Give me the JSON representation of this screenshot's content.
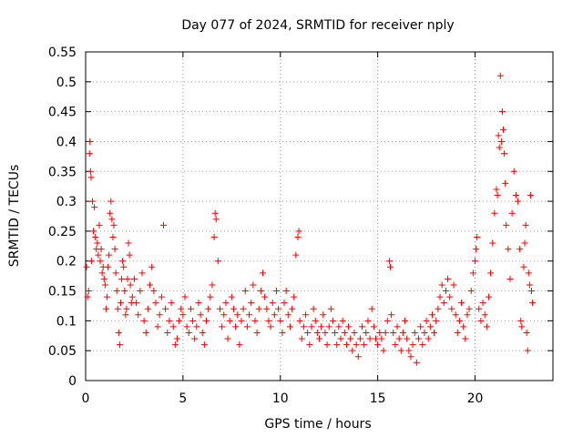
{
  "chart_data": {
    "type": "scatter",
    "title": "Day 077 of 2024, SRMTID for receiver nply",
    "xlabel": "GPS time / hours",
    "ylabel": "SRMTID / TECUs",
    "xlim": [
      0,
      24
    ],
    "ylim": [
      0,
      0.55
    ],
    "xticks": [
      0,
      5,
      10,
      15,
      20
    ],
    "xtick_labels": [
      "0",
      "5",
      "10",
      "15",
      "20"
    ],
    "yticks": [
      0,
      0.05,
      0.1,
      0.15,
      0.2,
      0.25,
      0.3,
      0.35,
      0.4,
      0.45,
      0.5,
      0.55
    ],
    "ytick_labels": [
      "0",
      "0.05",
      "0.1",
      "0.15",
      "0.2",
      "0.25",
      "0.3",
      "0.35",
      "0.4",
      "0.45",
      "0.5",
      "0.55"
    ],
    "grid": true,
    "marker": "+",
    "color": "#ff0000",
    "series": [
      {
        "name": "SRMTID",
        "points": [
          [
            0.05,
            0.19
          ],
          [
            0.1,
            0.14
          ],
          [
            0.15,
            0.15
          ],
          [
            0.2,
            0.38
          ],
          [
            0.22,
            0.4
          ],
          [
            0.25,
            0.35
          ],
          [
            0.28,
            0.34
          ],
          [
            0.3,
            0.2
          ],
          [
            0.35,
            0.3
          ],
          [
            0.4,
            0.25
          ],
          [
            0.45,
            0.29
          ],
          [
            0.5,
            0.24
          ],
          [
            0.55,
            0.22
          ],
          [
            0.6,
            0.23
          ],
          [
            0.65,
            0.21
          ],
          [
            0.7,
            0.26
          ],
          [
            0.75,
            0.2
          ],
          [
            0.8,
            0.22
          ],
          [
            0.85,
            0.18
          ],
          [
            0.9,
            0.19
          ],
          [
            0.95,
            0.17
          ],
          [
            1.0,
            0.16
          ],
          [
            1.05,
            0.12
          ],
          [
            1.1,
            0.14
          ],
          [
            1.15,
            0.19
          ],
          [
            1.2,
            0.21
          ],
          [
            1.25,
            0.28
          ],
          [
            1.3,
            0.3
          ],
          [
            1.35,
            0.27
          ],
          [
            1.4,
            0.24
          ],
          [
            1.45,
            0.26
          ],
          [
            1.5,
            0.22
          ],
          [
            1.55,
            0.18
          ],
          [
            1.6,
            0.15
          ],
          [
            1.65,
            0.12
          ],
          [
            1.7,
            0.08
          ],
          [
            1.75,
            0.06
          ],
          [
            1.8,
            0.13
          ],
          [
            1.85,
            0.17
          ],
          [
            1.9,
            0.2
          ],
          [
            1.95,
            0.19
          ],
          [
            2.0,
            0.15
          ],
          [
            2.05,
            0.11
          ],
          [
            2.1,
            0.12
          ],
          [
            2.15,
            0.17
          ],
          [
            2.2,
            0.23
          ],
          [
            2.25,
            0.21
          ],
          [
            2.3,
            0.16
          ],
          [
            2.35,
            0.13
          ],
          [
            2.4,
            0.14
          ],
          [
            2.5,
            0.17
          ],
          [
            2.6,
            0.13
          ],
          [
            2.7,
            0.11
          ],
          [
            2.8,
            0.15
          ],
          [
            2.9,
            0.18
          ],
          [
            3.0,
            0.1
          ],
          [
            3.1,
            0.08
          ],
          [
            3.2,
            0.12
          ],
          [
            3.3,
            0.16
          ],
          [
            3.4,
            0.19
          ],
          [
            3.5,
            0.15
          ],
          [
            3.6,
            0.13
          ],
          [
            3.7,
            0.09
          ],
          [
            3.8,
            0.11
          ],
          [
            3.9,
            0.14
          ],
          [
            4.0,
            0.26
          ],
          [
            4.1,
            0.12
          ],
          [
            4.2,
            0.08
          ],
          [
            4.3,
            0.1
          ],
          [
            4.4,
            0.13
          ],
          [
            4.5,
            0.09
          ],
          [
            4.6,
            0.06
          ],
          [
            4.7,
            0.07
          ],
          [
            4.8,
            0.1
          ],
          [
            4.9,
            0.12
          ],
          [
            5.0,
            0.11
          ],
          [
            5.1,
            0.14
          ],
          [
            5.2,
            0.09
          ],
          [
            5.3,
            0.08
          ],
          [
            5.4,
            0.12
          ],
          [
            5.5,
            0.1
          ],
          [
            5.6,
            0.07
          ],
          [
            5.7,
            0.09
          ],
          [
            5.8,
            0.13
          ],
          [
            5.9,
            0.11
          ],
          [
            6.0,
            0.08
          ],
          [
            6.1,
            0.06
          ],
          [
            6.2,
            0.1
          ],
          [
            6.3,
            0.12
          ],
          [
            6.4,
            0.14
          ],
          [
            6.5,
            0.16
          ],
          [
            6.6,
            0.24
          ],
          [
            6.65,
            0.28
          ],
          [
            6.7,
            0.27
          ],
          [
            6.8,
            0.2
          ],
          [
            6.9,
            0.12
          ],
          [
            7.0,
            0.09
          ],
          [
            7.1,
            0.11
          ],
          [
            7.2,
            0.13
          ],
          [
            7.3,
            0.07
          ],
          [
            7.4,
            0.1
          ],
          [
            7.5,
            0.14
          ],
          [
            7.6,
            0.12
          ],
          [
            7.7,
            0.09
          ],
          [
            7.8,
            0.11
          ],
          [
            7.9,
            0.06
          ],
          [
            8.0,
            0.1
          ],
          [
            8.1,
            0.12
          ],
          [
            8.2,
            0.15
          ],
          [
            8.3,
            0.09
          ],
          [
            8.4,
            0.11
          ],
          [
            8.5,
            0.13
          ],
          [
            8.6,
            0.16
          ],
          [
            8.7,
            0.1
          ],
          [
            8.8,
            0.08
          ],
          [
            8.9,
            0.12
          ],
          [
            9.0,
            0.15
          ],
          [
            9.1,
            0.18
          ],
          [
            9.2,
            0.14
          ],
          [
            9.3,
            0.12
          ],
          [
            9.4,
            0.1
          ],
          [
            9.5,
            0.09
          ],
          [
            9.6,
            0.13
          ],
          [
            9.7,
            0.11
          ],
          [
            9.8,
            0.15
          ],
          [
            9.9,
            0.12
          ],
          [
            10.0,
            0.1
          ],
          [
            10.1,
            0.08
          ],
          [
            10.2,
            0.13
          ],
          [
            10.3,
            0.15
          ],
          [
            10.4,
            0.11
          ],
          [
            10.5,
            0.09
          ],
          [
            10.6,
            0.12
          ],
          [
            10.7,
            0.14
          ],
          [
            10.8,
            0.21
          ],
          [
            10.9,
            0.24
          ],
          [
            10.95,
            0.25
          ],
          [
            11.0,
            0.1
          ],
          [
            11.1,
            0.07
          ],
          [
            11.2,
            0.09
          ],
          [
            11.3,
            0.11
          ],
          [
            11.4,
            0.08
          ],
          [
            11.5,
            0.06
          ],
          [
            11.6,
            0.09
          ],
          [
            11.7,
            0.12
          ],
          [
            11.8,
            0.1
          ],
          [
            11.9,
            0.08
          ],
          [
            12.0,
            0.07
          ],
          [
            12.1,
            0.09
          ],
          [
            12.2,
            0.11
          ],
          [
            12.3,
            0.08
          ],
          [
            12.4,
            0.06
          ],
          [
            12.5,
            0.09
          ],
          [
            12.6,
            0.12
          ],
          [
            12.7,
            0.1
          ],
          [
            12.8,
            0.08
          ],
          [
            12.9,
            0.06
          ],
          [
            13.0,
            0.09
          ],
          [
            13.1,
            0.07
          ],
          [
            13.2,
            0.1
          ],
          [
            13.3,
            0.08
          ],
          [
            13.4,
            0.06
          ],
          [
            13.5,
            0.09
          ],
          [
            13.6,
            0.07
          ],
          [
            13.7,
            0.05
          ],
          [
            13.8,
            0.08
          ],
          [
            13.9,
            0.06
          ],
          [
            14.0,
            0.04
          ],
          [
            14.1,
            0.07
          ],
          [
            14.2,
            0.09
          ],
          [
            14.3,
            0.06
          ],
          [
            14.4,
            0.08
          ],
          [
            14.5,
            0.1
          ],
          [
            14.6,
            0.07
          ],
          [
            14.7,
            0.12
          ],
          [
            14.8,
            0.09
          ],
          [
            14.9,
            0.07
          ],
          [
            15.0,
            0.06
          ],
          [
            15.1,
            0.08
          ],
          [
            15.2,
            0.07
          ],
          [
            15.3,
            0.05
          ],
          [
            15.4,
            0.08
          ],
          [
            15.5,
            0.1
          ],
          [
            15.6,
            0.2
          ],
          [
            15.65,
            0.19
          ],
          [
            15.7,
            0.11
          ],
          [
            15.8,
            0.08
          ],
          [
            15.9,
            0.06
          ],
          [
            16.0,
            0.09
          ],
          [
            16.1,
            0.07
          ],
          [
            16.2,
            0.05
          ],
          [
            16.3,
            0.08
          ],
          [
            16.4,
            0.1
          ],
          [
            16.5,
            0.07
          ],
          [
            16.6,
            0.05
          ],
          [
            16.7,
            0.04
          ],
          [
            16.8,
            0.06
          ],
          [
            16.9,
            0.08
          ],
          [
            17.0,
            0.03
          ],
          [
            17.1,
            0.07
          ],
          [
            17.2,
            0.09
          ],
          [
            17.3,
            0.06
          ],
          [
            17.4,
            0.08
          ],
          [
            17.5,
            0.1
          ],
          [
            17.6,
            0.07
          ],
          [
            17.7,
            0.09
          ],
          [
            17.8,
            0.11
          ],
          [
            17.9,
            0.08
          ],
          [
            18.0,
            0.1
          ],
          [
            18.1,
            0.12
          ],
          [
            18.2,
            0.14
          ],
          [
            18.3,
            0.16
          ],
          [
            18.4,
            0.13
          ],
          [
            18.5,
            0.15
          ],
          [
            18.6,
            0.17
          ],
          [
            18.7,
            0.14
          ],
          [
            18.8,
            0.12
          ],
          [
            18.9,
            0.16
          ],
          [
            19.0,
            0.11
          ],
          [
            19.1,
            0.08
          ],
          [
            19.2,
            0.1
          ],
          [
            19.3,
            0.13
          ],
          [
            19.4,
            0.09
          ],
          [
            19.5,
            0.07
          ],
          [
            19.6,
            0.11
          ],
          [
            19.7,
            0.12
          ],
          [
            19.8,
            0.15
          ],
          [
            19.9,
            0.18
          ],
          [
            20.0,
            0.2
          ],
          [
            20.05,
            0.22
          ],
          [
            20.1,
            0.24
          ],
          [
            20.2,
            0.12
          ],
          [
            20.3,
            0.1
          ],
          [
            20.4,
            0.13
          ],
          [
            20.5,
            0.11
          ],
          [
            20.6,
            0.09
          ],
          [
            20.7,
            0.14
          ],
          [
            20.8,
            0.18
          ],
          [
            20.9,
            0.23
          ],
          [
            21.0,
            0.28
          ],
          [
            21.1,
            0.32
          ],
          [
            21.15,
            0.31
          ],
          [
            21.2,
            0.41
          ],
          [
            21.25,
            0.39
          ],
          [
            21.3,
            0.51
          ],
          [
            21.35,
            0.4
          ],
          [
            21.4,
            0.45
          ],
          [
            21.45,
            0.42
          ],
          [
            21.5,
            0.38
          ],
          [
            21.55,
            0.33
          ],
          [
            21.6,
            0.26
          ],
          [
            21.7,
            0.22
          ],
          [
            21.8,
            0.17
          ],
          [
            21.9,
            0.28
          ],
          [
            22.0,
            0.35
          ],
          [
            22.1,
            0.31
          ],
          [
            22.2,
            0.3
          ],
          [
            22.3,
            0.22
          ],
          [
            22.35,
            0.1
          ],
          [
            22.4,
            0.09
          ],
          [
            22.5,
            0.19
          ],
          [
            22.55,
            0.23
          ],
          [
            22.6,
            0.26
          ],
          [
            22.65,
            0.08
          ],
          [
            22.7,
            0.05
          ],
          [
            22.75,
            0.18
          ],
          [
            22.8,
            0.16
          ],
          [
            22.85,
            0.31
          ],
          [
            22.9,
            0.15
          ],
          [
            22.95,
            0.13
          ]
        ]
      }
    ]
  }
}
